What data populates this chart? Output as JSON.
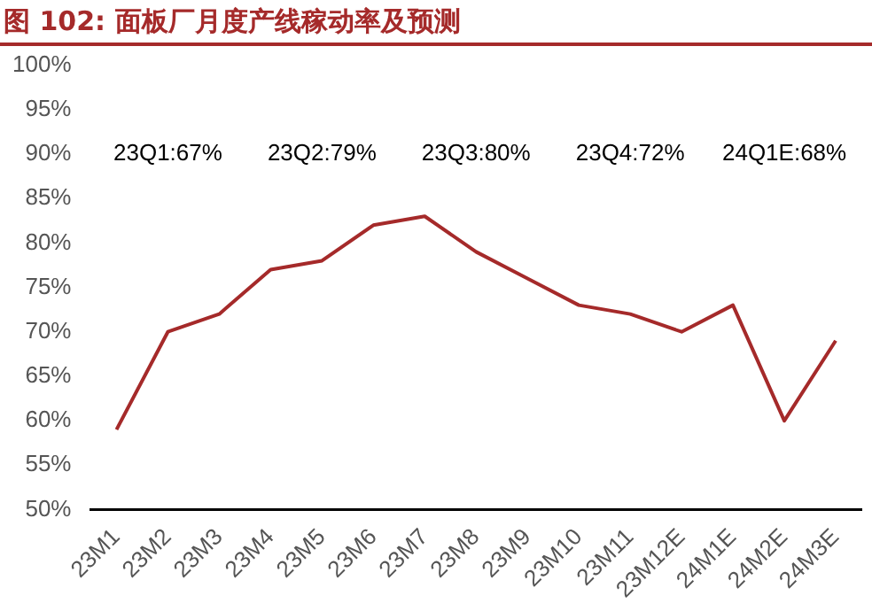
{
  "chart_data": {
    "type": "line",
    "title": "图 102:  面板厂月度产线稼动率及预测",
    "categories": [
      "23M1",
      "23M2",
      "23M3",
      "23M4",
      "23M5",
      "23M6",
      "23M7",
      "23M8",
      "23M9",
      "23M10",
      "23M11",
      "23M12E",
      "24M1E",
      "24M2E",
      "24M3E"
    ],
    "series": [
      {
        "color": "#a52a2a",
        "values": [
          59,
          70,
          72,
          77,
          78,
          82,
          83,
          79,
          76,
          73,
          72,
          70,
          73,
          60,
          69
        ]
      }
    ],
    "ylim": [
      50,
      100
    ],
    "yticks": [
      {
        "value": 50,
        "label": "50%"
      },
      {
        "value": 55,
        "label": "55%"
      },
      {
        "value": 60,
        "label": "60%"
      },
      {
        "value": 65,
        "label": "65%"
      },
      {
        "value": 70,
        "label": "70%"
      },
      {
        "value": 75,
        "label": "75%"
      },
      {
        "value": 80,
        "label": "80%"
      },
      {
        "value": 85,
        "label": "85%"
      },
      {
        "value": 90,
        "label": "90%"
      },
      {
        "value": 95,
        "label": "95%"
      },
      {
        "value": 100,
        "label": "100%"
      }
    ],
    "annotations": [
      "23Q1:67%",
      "23Q2:79%",
      "23Q3:80%",
      "23Q4:72%",
      "24Q1E:68%"
    ],
    "grid": false,
    "legend": false,
    "marker": "none",
    "line_style": "solid"
  }
}
